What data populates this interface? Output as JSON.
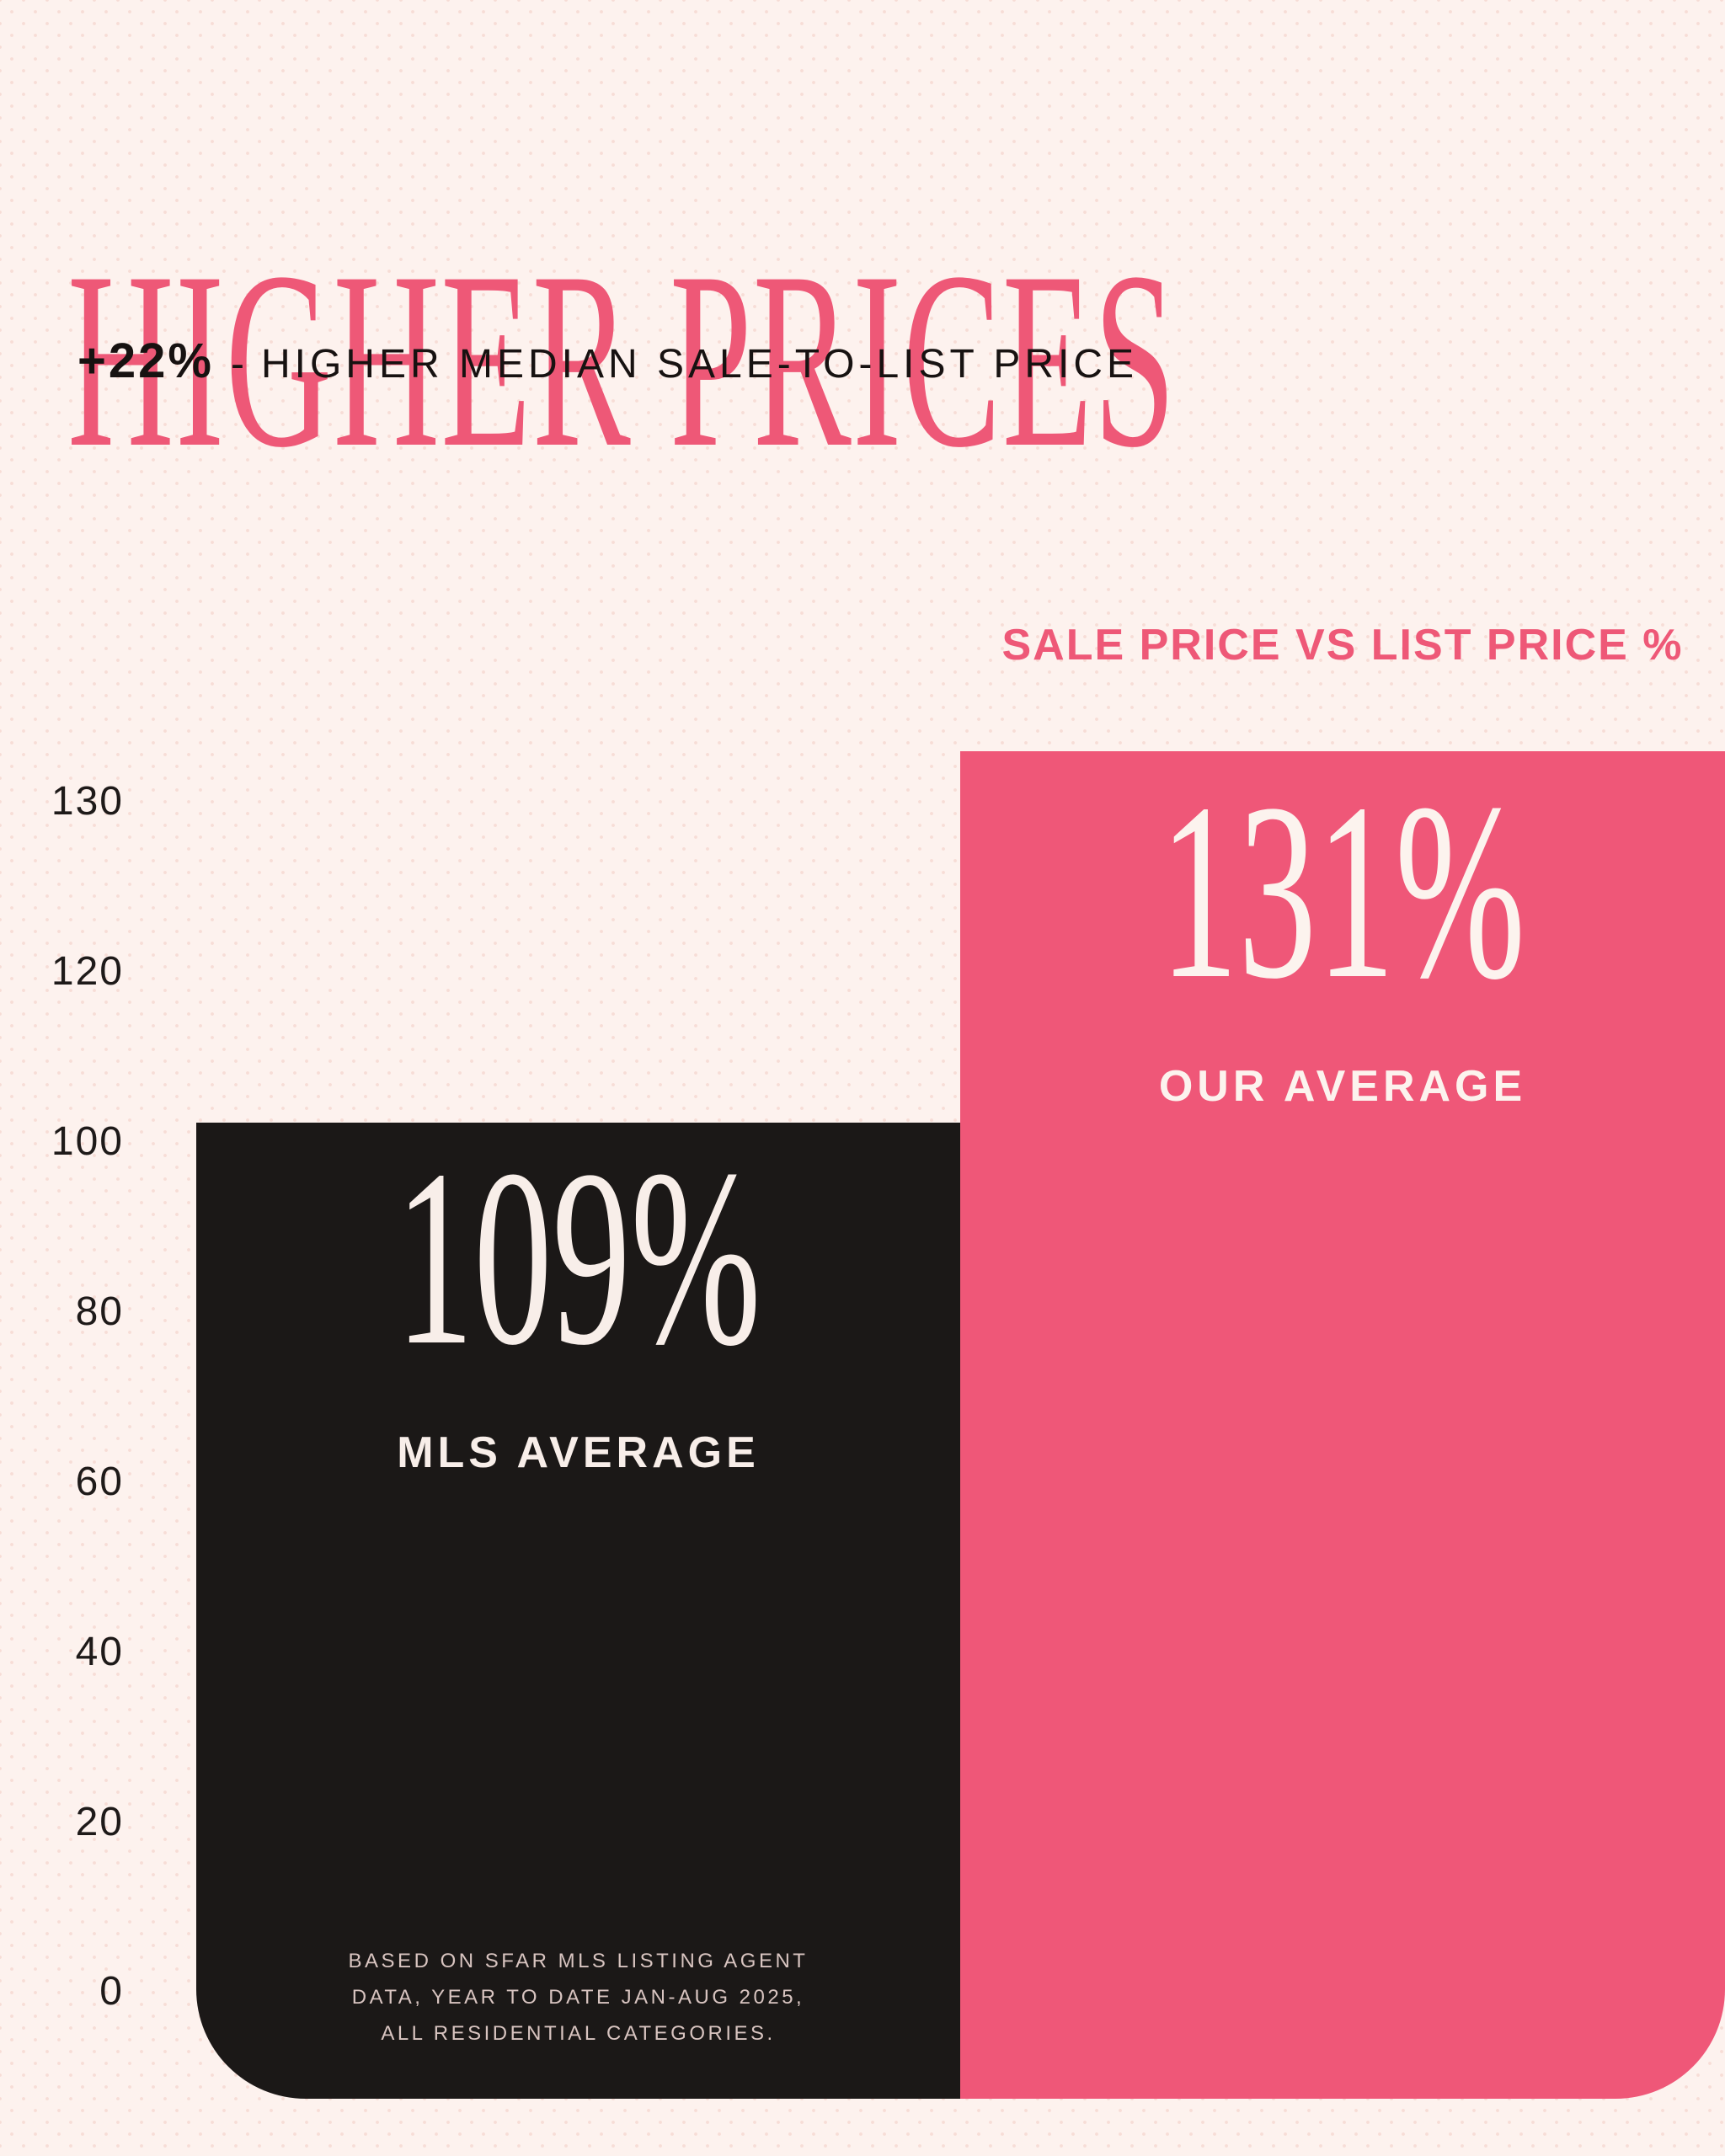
{
  "page": {
    "background_color": "#fdf2ee",
    "accent_pink": "#ee5877",
    "bar_black_color": "#1b1817",
    "bar_pink_color": "#ef5778",
    "light_text_color": "#f8eee9"
  },
  "header": {
    "title": "HIGHER PRICES",
    "stat": "+22%",
    "separator": "-",
    "subtitle": "HIGHER MEDIAN SALE-TO-LIST PRICE"
  },
  "chart": {
    "label": "SALE PRICE VS LIST PRICE %",
    "y_ticks": [
      "130",
      "120",
      "100",
      "80",
      "60",
      "40",
      "20",
      "0"
    ],
    "bars": [
      {
        "value_label": "109%",
        "name": "MLS AVERAGE",
        "color": "#1b1817"
      },
      {
        "value_label": "131%",
        "name": "OUR AVERAGE",
        "color": "#ef5778"
      }
    ],
    "footnote_lines": [
      "BASED ON SFAR MLS LISTING AGENT",
      "DATA, YEAR TO DATE JAN-AUG 2025,",
      "ALL RESIDENTIAL CATEGORIES."
    ]
  },
  "chart_data": {
    "type": "bar",
    "title": "SALE PRICE VS LIST PRICE %",
    "categories": [
      "MLS AVERAGE",
      "OUR AVERAGE"
    ],
    "values": [
      109,
      131
    ],
    "value_labels": [
      "109%",
      "131%"
    ],
    "bar_colors": [
      "#1b1817",
      "#ef5778"
    ],
    "xlabel": "",
    "ylabel": "",
    "y_tick_labels": [
      130,
      120,
      100,
      80,
      60,
      40,
      20,
      0
    ],
    "y_ticks_equally_spaced": true,
    "ylim": [
      0,
      140
    ],
    "grid": false,
    "legend_position": "none",
    "annotation": "BASED ON SFAR MLS LISTING AGENT DATA, YEAR TO DATE JAN-AUG 2025, ALL RESIDENTIAL CATEGORIES."
  }
}
